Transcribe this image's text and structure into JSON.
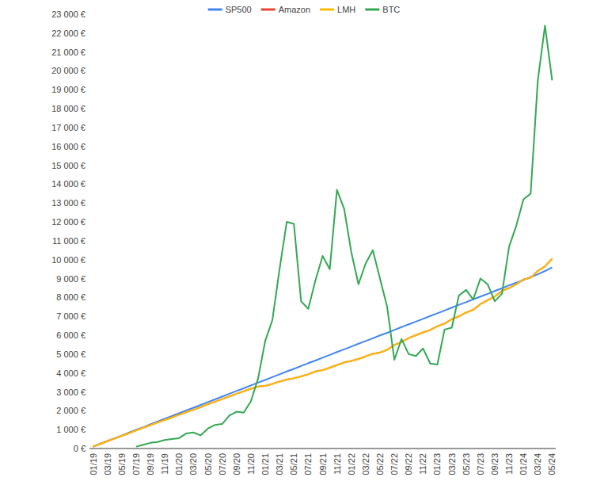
{
  "chart_data": {
    "type": "line",
    "categories": [
      "01/19",
      null,
      "03/19",
      null,
      "05/19",
      null,
      "07/19",
      null,
      "09/19",
      null,
      "11/19",
      null,
      "01/20",
      null,
      "03/20",
      null,
      "05/20",
      null,
      "07/20",
      null,
      "09/20",
      null,
      "11/20",
      null,
      "01/21",
      null,
      "03/21",
      null,
      "05/21",
      null,
      "07/21",
      null,
      "09/21",
      null,
      "11/21",
      null,
      "01/22",
      null,
      "03/22",
      null,
      "05/22",
      null,
      "07/22",
      null,
      "09/22",
      null,
      "11/22",
      null,
      "01/23",
      null,
      "03/23",
      null,
      "05/23",
      null,
      "07/23",
      null,
      "09/23",
      null,
      "11/23",
      null,
      "01/24",
      null,
      "03/24",
      null,
      "05/24"
    ],
    "series": [
      {
        "name": "SP500",
        "color": "#4285f4",
        "values": [
          100,
          250,
          400,
          540,
          690,
          840,
          990,
          1130,
          1280,
          1430,
          1580,
          1720,
          1870,
          2020,
          2160,
          2310,
          2460,
          2600,
          2750,
          2900,
          3050,
          3190,
          3340,
          3490,
          3630,
          3780,
          3930,
          4080,
          4220,
          4370,
          4520,
          4660,
          4810,
          4960,
          5110,
          5250,
          5400,
          5550,
          5690,
          5840,
          5990,
          6130,
          6280,
          6430,
          6580,
          6720,
          6870,
          7020,
          7160,
          7310,
          7460,
          7610,
          7750,
          7900,
          8050,
          8190,
          8340,
          8490,
          8640,
          8780,
          8930,
          9080,
          9230,
          9400,
          9600
        ]
      },
      {
        "name": "Amazon",
        "color": "#ea4335",
        "values": [
          100,
          240,
          390,
          530,
          670,
          810,
          960,
          1100,
          1240,
          1380,
          1510,
          1650,
          1790,
          1930,
          2050,
          2200,
          2350,
          2480,
          2620,
          2760,
          2900,
          3030,
          3170,
          3280,
          3320,
          3420,
          3550,
          3650,
          3720,
          3820,
          3930,
          4080,
          4150,
          4280,
          4420,
          4560,
          4640,
          4740,
          4880,
          5020,
          5080,
          5230,
          5480,
          5640,
          5850,
          6000,
          6150,
          6280,
          6480,
          6620,
          6850,
          7000,
          7200,
          7350,
          7650,
          7850,
          8050,
          8350,
          8500,
          8700,
          8950,
          9050,
          9400,
          9650,
          10050
        ]
      },
      {
        "name": "LMH",
        "color": "#fbbc04",
        "values": [
          100,
          240,
          390,
          530,
          670,
          810,
          960,
          1100,
          1240,
          1380,
          1510,
          1650,
          1790,
          1930,
          2050,
          2200,
          2350,
          2480,
          2620,
          2760,
          2900,
          3030,
          3170,
          3280,
          3320,
          3420,
          3550,
          3650,
          3720,
          3820,
          3930,
          4080,
          4150,
          4280,
          4420,
          4560,
          4640,
          4740,
          4880,
          5020,
          5080,
          5230,
          5480,
          5640,
          5850,
          6000,
          6150,
          6280,
          6480,
          6620,
          6850,
          7000,
          7200,
          7350,
          7650,
          7850,
          8050,
          8350,
          8500,
          8700,
          8950,
          9050,
          9400,
          9650,
          10050
        ]
      },
      {
        "name": "BTC",
        "color": "#34a853",
        "values": [
          null,
          null,
          null,
          null,
          null,
          null,
          100,
          200,
          300,
          350,
          450,
          500,
          550,
          800,
          850,
          700,
          1050,
          1250,
          1300,
          1750,
          1950,
          1900,
          2500,
          3700,
          5700,
          6800,
          9500,
          12000,
          11900,
          7800,
          7400,
          8900,
          10200,
          9500,
          13700,
          12700,
          10400,
          8700,
          9800,
          10500,
          9000,
          7500,
          4700,
          5800,
          5000,
          4900,
          5300,
          4500,
          4450,
          6300,
          6400,
          8100,
          8400,
          7900,
          9000,
          8700,
          7800,
          8200,
          10700,
          11800,
          13200,
          13500,
          19500,
          22400,
          19500
        ]
      }
    ],
    "ylim": [
      0,
      23000
    ],
    "yticks": [
      {
        "value": 0,
        "label": "0 €"
      },
      {
        "value": 1000,
        "label": "1 000 €"
      },
      {
        "value": 2000,
        "label": "2 000 €"
      },
      {
        "value": 3000,
        "label": "3 000 €"
      },
      {
        "value": 4000,
        "label": "4 000 €"
      },
      {
        "value": 5000,
        "label": "5 000 €"
      },
      {
        "value": 6000,
        "label": "6 000 €"
      },
      {
        "value": 7000,
        "label": "7 000 €"
      },
      {
        "value": 8000,
        "label": "8 000 €"
      },
      {
        "value": 9000,
        "label": "9 000 €"
      },
      {
        "value": 10000,
        "label": "10 000 €"
      },
      {
        "value": 11000,
        "label": "11 000 €"
      },
      {
        "value": 12000,
        "label": "12 000 €"
      },
      {
        "value": 13000,
        "label": "13 000 €"
      },
      {
        "value": 14000,
        "label": "14 000 €"
      },
      {
        "value": 15000,
        "label": "15 000 €"
      },
      {
        "value": 16000,
        "label": "16 000 €"
      },
      {
        "value": 17000,
        "label": "17 000 €"
      },
      {
        "value": 18000,
        "label": "18 000 €"
      },
      {
        "value": 19000,
        "label": "19 000 €"
      },
      {
        "value": 20000,
        "label": "20 000 €"
      },
      {
        "value": 21000,
        "label": "21 000 €"
      },
      {
        "value": 22000,
        "label": "22 000 €"
      },
      {
        "value": 23000,
        "label": "23 000 €"
      }
    ],
    "grid": false,
    "legend": "top"
  }
}
